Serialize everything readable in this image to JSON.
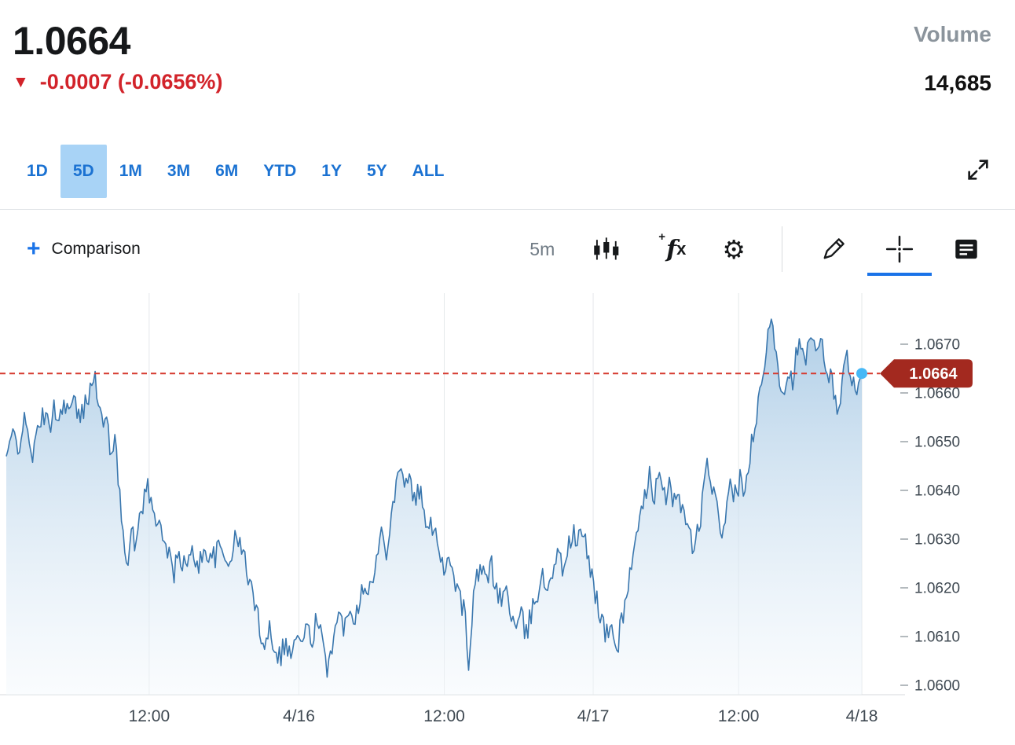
{
  "quote": {
    "price": "1.0664",
    "direction_glyph": "▼",
    "change_text": "-0.0007 (-0.0656%)",
    "volume_label": "Volume",
    "volume_value": "14,685"
  },
  "ranges": {
    "items": [
      "1D",
      "5D",
      "1M",
      "3M",
      "6M",
      "YTD",
      "1Y",
      "5Y",
      "ALL"
    ],
    "active": "5D"
  },
  "toolbar": {
    "plus_glyph": "+",
    "comparison_label": "Comparison",
    "interval": "5m",
    "gear_glyph": "⚙",
    "fx": {
      "plus": "+",
      "f": "f",
      "x": "x"
    },
    "active_tool": "crosshair"
  },
  "colors": {
    "accent_blue": "#1a73e8",
    "tab_blue": "#1b72d2",
    "tab_active_bg": "#a8d3f6",
    "change_red": "#d2232a",
    "muted_text": "#8b949c",
    "line": "#3a77ae",
    "area_top": "#a6c8e4",
    "area_bottom": "#f3f8fc",
    "grid": "#e5e8ea",
    "axis_line": "#d7dadd",
    "tick": "#9aa2a9",
    "axis_text": "#3f4952",
    "last_line": "#d63a2f",
    "badge": "#a3291f",
    "dot": "#47b8f6"
  },
  "chart_data": {
    "type": "area",
    "interval": "5m",
    "last_price": 1.0664,
    "last_price_label": "1.0664",
    "ylim": [
      1.0598,
      1.0681
    ],
    "grid": "vertical",
    "legend": "none",
    "y_ticks": [
      "1.0600",
      "1.0610",
      "1.0620",
      "1.0630",
      "1.0640",
      "1.0650",
      "1.0660",
      "1.0670"
    ],
    "x_ticks": [
      {
        "pos": 0.167,
        "label": "12:00"
      },
      {
        "pos": 0.342,
        "label": "4/16"
      },
      {
        "pos": 0.512,
        "label": "12:00"
      },
      {
        "pos": 0.686,
        "label": "4/17"
      },
      {
        "pos": 0.856,
        "label": "12:00"
      },
      {
        "pos": 1.0,
        "label": "4/18"
      }
    ],
    "noise_amplitude": 0.00026,
    "noise_seed": 42,
    "points": [
      [
        0.0,
        1.0647
      ],
      [
        0.008,
        1.0652
      ],
      [
        0.014,
        1.0649
      ],
      [
        0.02,
        1.0654
      ],
      [
        0.026,
        1.0651
      ],
      [
        0.032,
        1.0647
      ],
      [
        0.038,
        1.0653
      ],
      [
        0.044,
        1.0656
      ],
      [
        0.05,
        1.0652
      ],
      [
        0.056,
        1.0658
      ],
      [
        0.062,
        1.0654
      ],
      [
        0.068,
        1.0659
      ],
      [
        0.074,
        1.0656
      ],
      [
        0.08,
        1.0658
      ],
      [
        0.086,
        1.0654
      ],
      [
        0.091,
        1.0657
      ],
      [
        0.096,
        1.066
      ],
      [
        0.101,
        1.0665
      ],
      [
        0.106,
        1.066
      ],
      [
        0.11,
        1.0656
      ],
      [
        0.114,
        1.0652
      ],
      [
        0.118,
        1.0655
      ],
      [
        0.122,
        1.0648
      ],
      [
        0.126,
        1.0651
      ],
      [
        0.13,
        1.0644
      ],
      [
        0.134,
        1.0636
      ],
      [
        0.138,
        1.063
      ],
      [
        0.142,
        1.0626
      ],
      [
        0.146,
        1.0632
      ],
      [
        0.15,
        1.0628
      ],
      [
        0.155,
        1.0634
      ],
      [
        0.16,
        1.0638
      ],
      [
        0.165,
        1.0641
      ],
      [
        0.17,
        1.0637
      ],
      [
        0.175,
        1.0632
      ],
      [
        0.18,
        1.0635
      ],
      [
        0.185,
        1.063
      ],
      [
        0.19,
        1.0626
      ],
      [
        0.196,
        1.0623
      ],
      [
        0.202,
        1.0627
      ],
      [
        0.21,
        1.0624
      ],
      [
        0.218,
        1.0627
      ],
      [
        0.226,
        1.0625
      ],
      [
        0.234,
        1.0628
      ],
      [
        0.242,
        1.0626
      ],
      [
        0.25,
        1.0628
      ],
      [
        0.258,
        1.0625
      ],
      [
        0.266,
        1.0629
      ],
      [
        0.272,
        1.063
      ],
      [
        0.278,
        1.0626
      ],
      [
        0.284,
        1.0622
      ],
      [
        0.29,
        1.0617
      ],
      [
        0.296,
        1.0612
      ],
      [
        0.302,
        1.0609
      ],
      [
        0.308,
        1.0612
      ],
      [
        0.314,
        1.0608
      ],
      [
        0.32,
        1.0606
      ],
      [
        0.326,
        1.0609
      ],
      [
        0.332,
        1.0606
      ],
      [
        0.338,
        1.061
      ],
      [
        0.344,
        1.0608
      ],
      [
        0.35,
        1.0612
      ],
      [
        0.356,
        1.0609
      ],
      [
        0.362,
        1.0613
      ],
      [
        0.368,
        1.061
      ],
      [
        0.374,
        1.0603
      ],
      [
        0.378,
        1.0607
      ],
      [
        0.384,
        1.0611
      ],
      [
        0.39,
        1.0614
      ],
      [
        0.396,
        1.0612
      ],
      [
        0.402,
        1.0617
      ],
      [
        0.408,
        1.0614
      ],
      [
        0.414,
        1.0619
      ],
      [
        0.42,
        1.0622
      ],
      [
        0.426,
        1.0619
      ],
      [
        0.432,
        1.0625
      ],
      [
        0.438,
        1.0631
      ],
      [
        0.444,
        1.0628
      ],
      [
        0.45,
        1.0636
      ],
      [
        0.456,
        1.0641
      ],
      [
        0.462,
        1.0647
      ],
      [
        0.466,
        1.064
      ],
      [
        0.47,
        1.0644
      ],
      [
        0.476,
        1.0637
      ],
      [
        0.482,
        1.0641
      ],
      [
        0.488,
        1.0635
      ],
      [
        0.494,
        1.0631
      ],
      [
        0.5,
        1.0634
      ],
      [
        0.506,
        1.0628
      ],
      [
        0.512,
        1.0624
      ],
      [
        0.518,
        1.0627
      ],
      [
        0.524,
        1.0622
      ],
      [
        0.53,
        1.0618
      ],
      [
        0.536,
        1.0615
      ],
      [
        0.54,
        1.0601
      ],
      [
        0.544,
        1.0614
      ],
      [
        0.548,
        1.062
      ],
      [
        0.554,
        1.0624
      ],
      [
        0.56,
        1.0621
      ],
      [
        0.566,
        1.0625
      ],
      [
        0.572,
        1.0621
      ],
      [
        0.578,
        1.0617
      ],
      [
        0.584,
        1.062
      ],
      [
        0.59,
        1.0615
      ],
      [
        0.596,
        1.0611
      ],
      [
        0.602,
        1.0614
      ],
      [
        0.608,
        1.061
      ],
      [
        0.614,
        1.0615
      ],
      [
        0.62,
        1.0619
      ],
      [
        0.626,
        1.0622
      ],
      [
        0.632,
        1.062
      ],
      [
        0.638,
        1.0624
      ],
      [
        0.644,
        1.0627
      ],
      [
        0.65,
        1.0624
      ],
      [
        0.656,
        1.0628
      ],
      [
        0.662,
        1.0631
      ],
      [
        0.668,
        1.0629
      ],
      [
        0.672,
        1.0632
      ],
      [
        0.678,
        1.0628
      ],
      [
        0.684,
        1.0623
      ],
      [
        0.69,
        1.0618
      ],
      [
        0.696,
        1.0613
      ],
      [
        0.702,
        1.061
      ],
      [
        0.708,
        1.0612
      ],
      [
        0.714,
        1.0607
      ],
      [
        0.718,
        1.0612
      ],
      [
        0.724,
        1.0618
      ],
      [
        0.73,
        1.0624
      ],
      [
        0.736,
        1.0629
      ],
      [
        0.742,
        1.0634
      ],
      [
        0.748,
        1.064
      ],
      [
        0.752,
        1.0646
      ],
      [
        0.756,
        1.0638
      ],
      [
        0.762,
        1.0643
      ],
      [
        0.768,
        1.0638
      ],
      [
        0.774,
        1.0641
      ],
      [
        0.78,
        1.0637
      ],
      [
        0.786,
        1.064
      ],
      [
        0.792,
        1.0635
      ],
      [
        0.798,
        1.0631
      ],
      [
        0.804,
        1.0628
      ],
      [
        0.81,
        1.0633
      ],
      [
        0.816,
        1.064
      ],
      [
        0.82,
        1.0647
      ],
      [
        0.824,
        1.0641
      ],
      [
        0.83,
        1.0636
      ],
      [
        0.836,
        1.0631
      ],
      [
        0.842,
        1.0637
      ],
      [
        0.848,
        1.0641
      ],
      [
        0.854,
        1.0638
      ],
      [
        0.858,
        1.0642
      ],
      [
        0.862,
        1.0638
      ],
      [
        0.866,
        1.0644
      ],
      [
        0.872,
        1.065
      ],
      [
        0.878,
        1.0656
      ],
      [
        0.884,
        1.0662
      ],
      [
        0.889,
        1.0669
      ],
      [
        0.894,
        1.0677
      ],
      [
        0.899,
        1.067
      ],
      [
        0.904,
        1.0663
      ],
      [
        0.909,
        1.066
      ],
      [
        0.914,
        1.0666
      ],
      [
        0.918,
        1.0662
      ],
      [
        0.923,
        1.0667
      ],
      [
        0.928,
        1.067
      ],
      [
        0.933,
        1.0666
      ],
      [
        0.938,
        1.0669
      ],
      [
        0.943,
        1.0671
      ],
      [
        0.948,
        1.0667
      ],
      [
        0.953,
        1.067
      ],
      [
        0.958,
        1.0666
      ],
      [
        0.963,
        1.0663
      ],
      [
        0.968,
        1.066
      ],
      [
        0.973,
        1.0657
      ],
      [
        0.978,
        1.0663
      ],
      [
        0.983,
        1.0668
      ],
      [
        0.988,
        1.0664
      ],
      [
        0.993,
        1.0659
      ],
      [
        0.997,
        1.0662
      ],
      [
        1.0,
        1.0664
      ]
    ]
  }
}
